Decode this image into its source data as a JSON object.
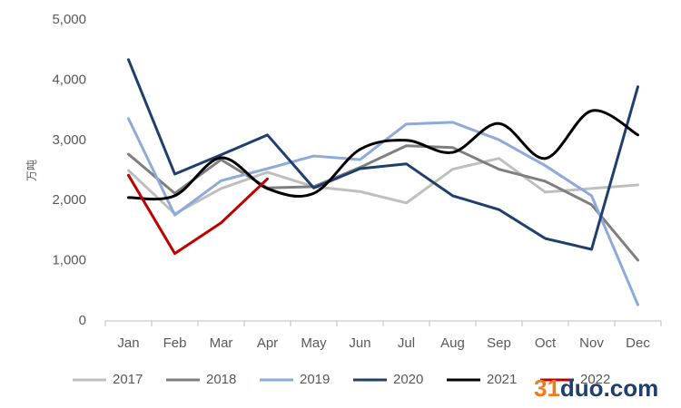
{
  "chart_data": {
    "type": "line",
    "y_axis_label": "万吨",
    "categories": [
      "Jan",
      "Feb",
      "Mar",
      "Apr",
      "May",
      "Jun",
      "Jul",
      "Aug",
      "Sep",
      "Oct",
      "Nov",
      "Dec"
    ],
    "ylim": [
      0,
      5000
    ],
    "yticks": [
      0,
      {
        "value": 1000,
        "label": "1,000"
      },
      {
        "value": 2000,
        "label": "2,000"
      },
      {
        "value": 3000,
        "label": "3,000"
      },
      {
        "value": 4000,
        "label": "4,000"
      },
      {
        "value": 5000,
        "label": "5,000"
      }
    ],
    "grid": false,
    "legend": "bottom",
    "series": [
      {
        "name": "2017",
        "color": "#bfbfbf",
        "smooth": false,
        "values": [
          2500,
          1780,
          2200,
          2470,
          2230,
          2150,
          1960,
          2520,
          2700,
          2140,
          2200,
          2260
        ]
      },
      {
        "name": "2018",
        "color": "#7f7f7f",
        "smooth": false,
        "values": [
          2770,
          2120,
          2680,
          2210,
          2230,
          2550,
          2910,
          2880,
          2520,
          2320,
          1930,
          1010
        ]
      },
      {
        "name": "2019",
        "color": "#8eaadb",
        "smooth": false,
        "values": [
          3360,
          1760,
          2330,
          2530,
          2740,
          2680,
          3270,
          3300,
          3010,
          2580,
          2080,
          270
        ]
      },
      {
        "name": "2020",
        "color": "#1f3f6e",
        "smooth": false,
        "values": [
          4340,
          2440,
          2760,
          3090,
          2210,
          2530,
          2610,
          2080,
          1850,
          1370,
          1190,
          3890
        ]
      },
      {
        "name": "2021",
        "color": "#000000",
        "smooth": true,
        "values": [
          2050,
          2080,
          2710,
          2200,
          2120,
          2850,
          3000,
          2800,
          3280,
          2700,
          3490,
          3090
        ]
      },
      {
        "name": "2022",
        "color": "#c00000",
        "smooth": false,
        "values": [
          2420,
          1120,
          1630,
          2360,
          null,
          null,
          null,
          null,
          null,
          null,
          null,
          null
        ]
      }
    ],
    "watermark": {
      "prefix": "31",
      "suffix": "duo.com",
      "prefix_color": "#f07c1c",
      "suffix_color": "#1f3f6e"
    }
  }
}
